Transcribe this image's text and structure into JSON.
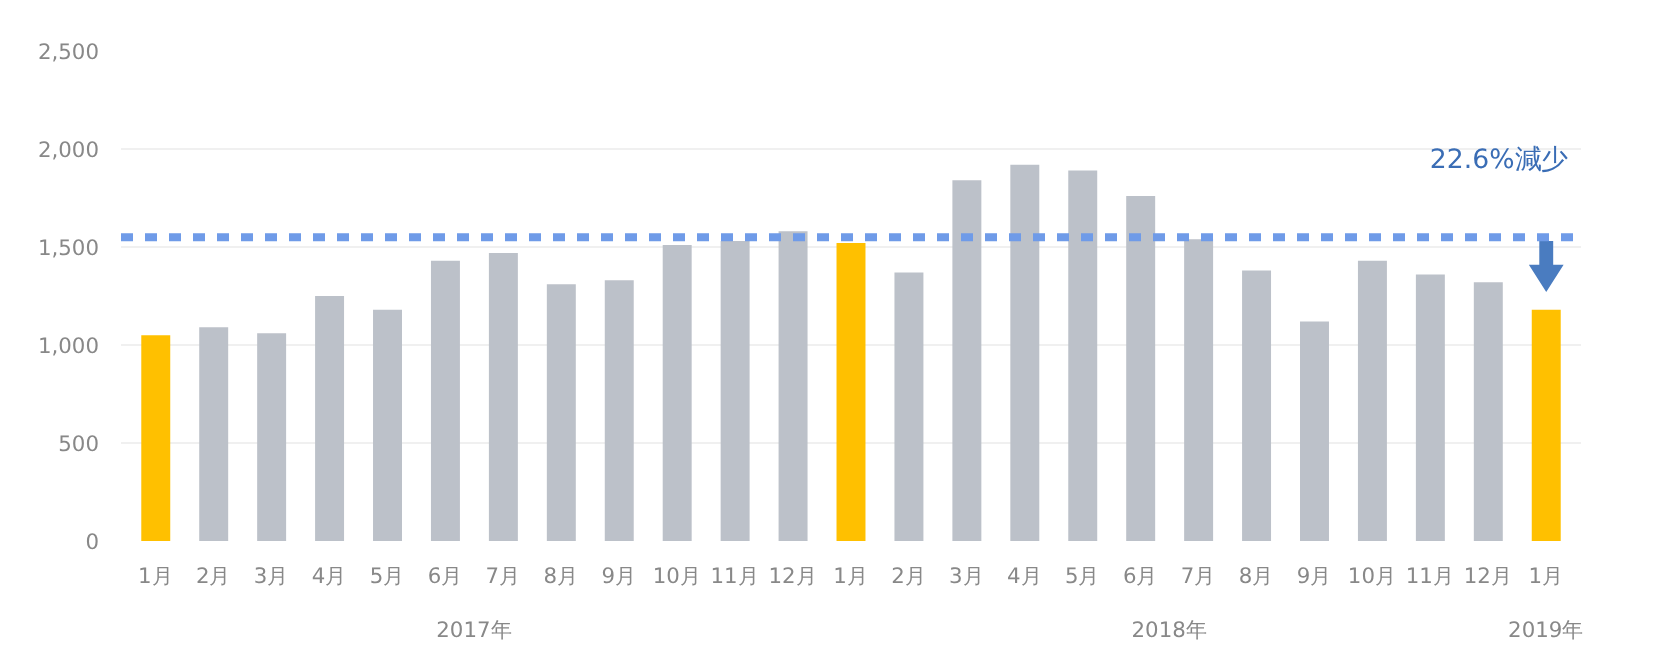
{
  "chart_data": {
    "type": "bar",
    "categories": [
      "1月",
      "2月",
      "3月",
      "4月",
      "5月",
      "6月",
      "7月",
      "8月",
      "9月",
      "10月",
      "11月",
      "12月",
      "1月",
      "2月",
      "3月",
      "4月",
      "5月",
      "6月",
      "7月",
      "8月",
      "9月",
      "10月",
      "11月",
      "12月",
      "1月"
    ],
    "values": [
      1050,
      1090,
      1060,
      1250,
      1180,
      1430,
      1470,
      1310,
      1330,
      1510,
      1530,
      1580,
      1520,
      1370,
      1840,
      1920,
      1890,
      1760,
      1540,
      1380,
      1120,
      1430,
      1360,
      1320,
      1180
    ],
    "colors": [
      "#ffc000",
      "#bcc1c9",
      "#bcc1c9",
      "#bcc1c9",
      "#bcc1c9",
      "#bcc1c9",
      "#bcc1c9",
      "#bcc1c9",
      "#bcc1c9",
      "#bcc1c9",
      "#bcc1c9",
      "#bcc1c9",
      "#ffc000",
      "#bcc1c9",
      "#bcc1c9",
      "#bcc1c9",
      "#bcc1c9",
      "#bcc1c9",
      "#bcc1c9",
      "#bcc1c9",
      "#bcc1c9",
      "#bcc1c9",
      "#bcc1c9",
      "#bcc1c9",
      "#ffc000"
    ],
    "ylim": [
      0,
      2500
    ],
    "yticks": [
      {
        "value": 0,
        "label": "0"
      },
      {
        "value": 500,
        "label": "500"
      },
      {
        "value": 1000,
        "label": "1,000"
      },
      {
        "value": 1500,
        "label": "1,500"
      },
      {
        "value": 2000,
        "label": "2,000"
      },
      {
        "value": 2500,
        "label": "2,500"
      }
    ],
    "grid": "y",
    "ref_lines": [
      {
        "axis": "y",
        "value": 1550,
        "color": "#6f9be8",
        "line_style": "dashed"
      }
    ],
    "annotations": [
      "22.6%減少",
      "2017年",
      "2018年",
      "2019年"
    ]
  }
}
